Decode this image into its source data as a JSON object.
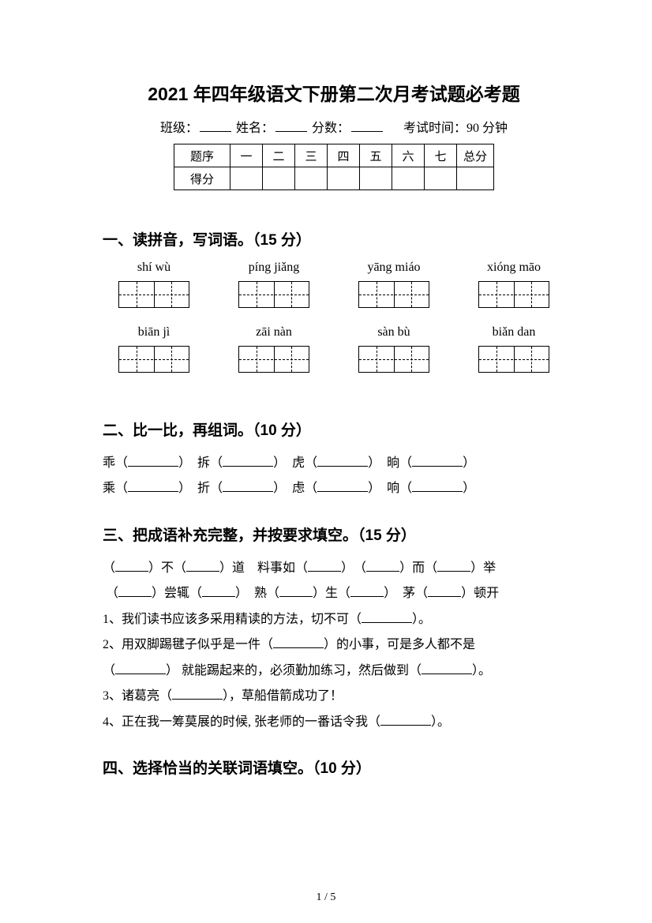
{
  "title": "2021 年四年级语文下册第二次月考试题必考题",
  "info": {
    "class_label": "班级：",
    "name_label": "姓名：",
    "score_label": "分数：",
    "time_label": "考试时间：90 分钟"
  },
  "score_table": {
    "row1": [
      "题序",
      "一",
      "二",
      "三",
      "四",
      "五",
      "六",
      "七",
      "总分"
    ],
    "row2_label": "得分"
  },
  "section1": {
    "heading": "一、读拼音，写词语。（15 分）",
    "items": [
      "shí wù",
      "píng jiǎng",
      "yāng miáo",
      "xióng māo",
      "biān jì",
      "zāi nàn",
      "sàn bù",
      "biǎn dan"
    ]
  },
  "section2": {
    "heading": "二、比一比，再组词。（10 分）",
    "pairs": [
      [
        "乖",
        "拆",
        "虎",
        "晌"
      ],
      [
        "乘",
        "折",
        "虑",
        "响"
      ]
    ]
  },
  "section3": {
    "heading": "三、把成语补充完整，并按要求填空。（15 分）",
    "line1": {
      "a": "（",
      "b": "）不（",
      "c": "）道　料事如（",
      "d": "）　（",
      "e": "）而（",
      "f": "）举"
    },
    "line2": {
      "a": "（",
      "b": "）尝辄（",
      "c": "）　熟（",
      "d": "）生（",
      "e": "）　茅（",
      "f": "）顿开"
    },
    "q1": "1、我们读书应该多采用精读的方法，切不可（",
    "q1_end": "）。",
    "q2": "2、用双脚踢毽子似乎是一件（",
    "q2_mid": "）的小事，可是多人都不是",
    "q2b": "（",
    "q2b_mid": "） 就能踢起来的，必须勤加练习，然后做到（",
    "q2b_end": "）。",
    "q3": "3、诸葛亮（",
    "q3_end": "），草船借箭成功了！",
    "q4": "4、正在我一筹莫展的时候, 张老师的一番话令我（",
    "q4_end": "）。"
  },
  "section4": {
    "heading": "四、选择恰当的关联词语填空。（10 分）"
  },
  "page_num": "1 / 5"
}
